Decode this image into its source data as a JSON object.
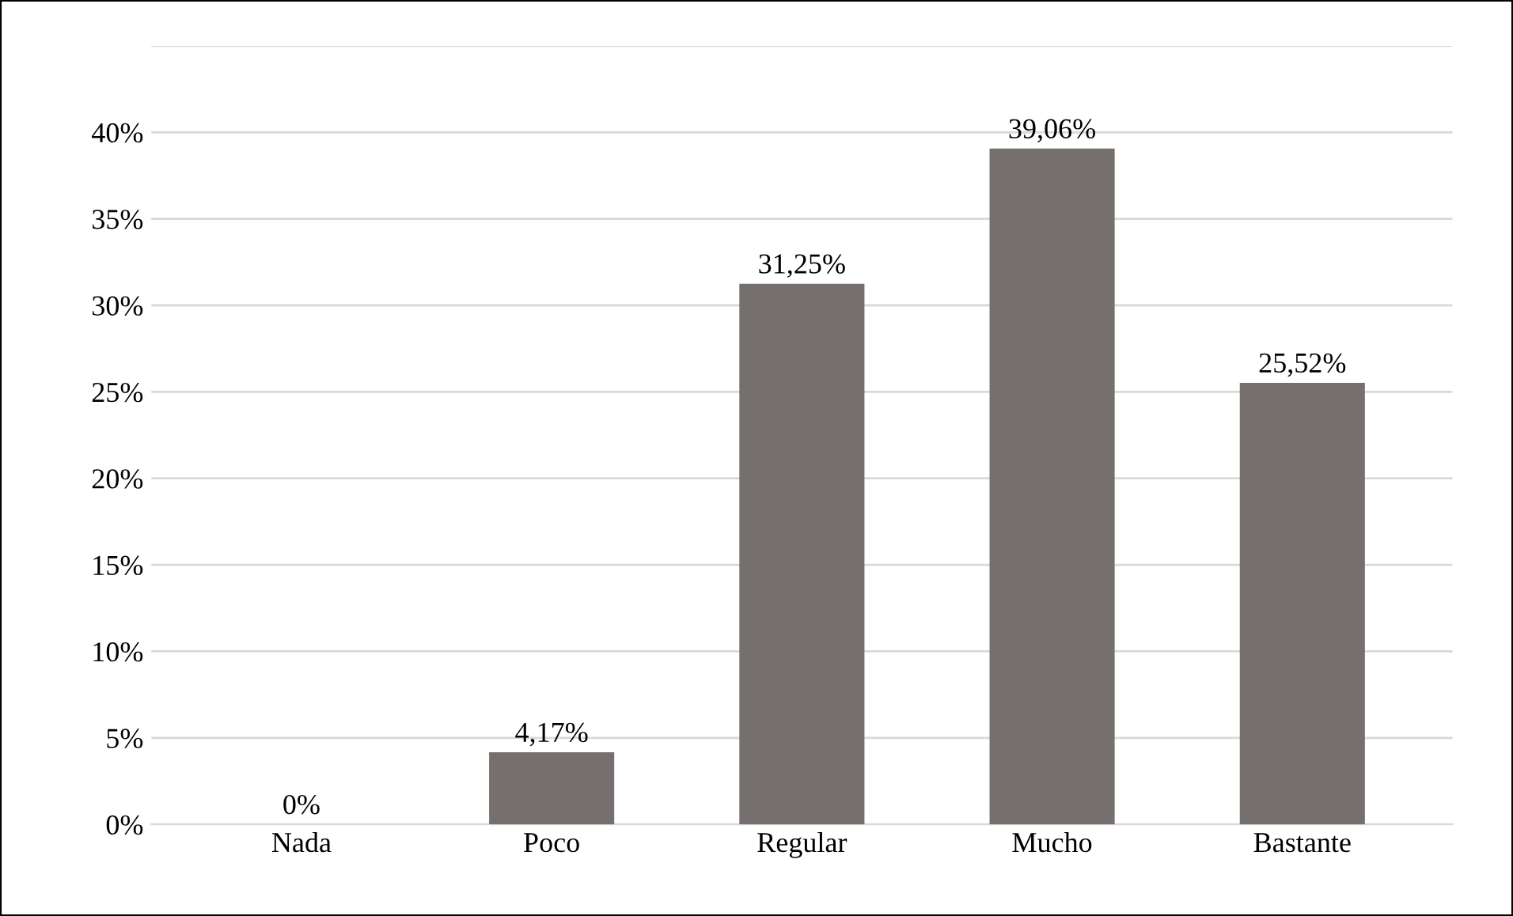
{
  "chart_data": {
    "type": "bar",
    "categories": [
      "Nada",
      "Poco",
      "Regular",
      "Mucho",
      "Bastante"
    ],
    "values": [
      0,
      4.17,
      31.25,
      39.06,
      25.52
    ],
    "value_labels": [
      "0%",
      "4,17%",
      "31,25%",
      "39,06%",
      "25,52%"
    ],
    "color": "#75706e",
    "ylim": [
      0,
      45
    ],
    "yticks": [
      {
        "value": 0,
        "label": "0%"
      },
      {
        "value": 5,
        "label": "5%"
      },
      {
        "value": 10,
        "label": "10%"
      },
      {
        "value": 15,
        "label": "15%"
      },
      {
        "value": 20,
        "label": "20%"
      },
      {
        "value": 25,
        "label": "25%"
      },
      {
        "value": 30,
        "label": "30%"
      },
      {
        "value": 35,
        "label": "35%"
      },
      {
        "value": 40,
        "label": "40%"
      },
      {
        "value": 45,
        "label": null
      }
    ],
    "grid": "y",
    "legend": false
  }
}
